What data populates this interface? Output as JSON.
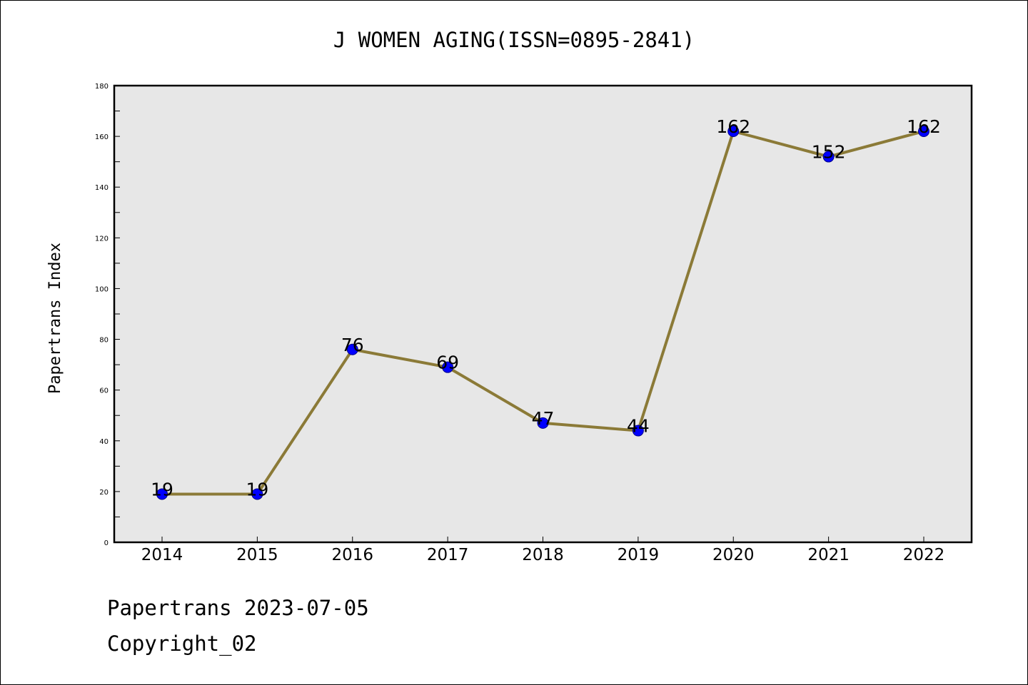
{
  "chart_data": {
    "type": "line",
    "title": "J WOMEN AGING(ISSN=0895-2841)",
    "xlabel": "",
    "ylabel": "Papertrans Index",
    "categories": [
      "2014",
      "2015",
      "2016",
      "2017",
      "2018",
      "2019",
      "2020",
      "2021",
      "2022"
    ],
    "values": [
      19,
      19,
      76,
      69,
      47,
      44,
      162,
      152,
      162
    ],
    "data_labels": [
      "19",
      "19",
      "76",
      "69",
      "47",
      "44",
      "162",
      "152",
      "162"
    ],
    "ylim": [
      0,
      180
    ],
    "yticks": [
      0,
      20,
      40,
      60,
      80,
      100,
      120,
      140,
      160,
      180
    ],
    "yticks_minor": [
      10,
      30,
      50,
      70,
      90,
      110,
      130,
      150,
      170
    ],
    "grid": false,
    "legend": "none",
    "colors": {
      "line": "#8b7a37",
      "marker_fill": "#0000ff",
      "marker_edge": "#00008b",
      "plot_background": "#e7e7e7",
      "axes_edge": "#000000"
    }
  },
  "footer": {
    "line1": "Papertrans 2023-07-05",
    "line2": "Copyright_02"
  }
}
